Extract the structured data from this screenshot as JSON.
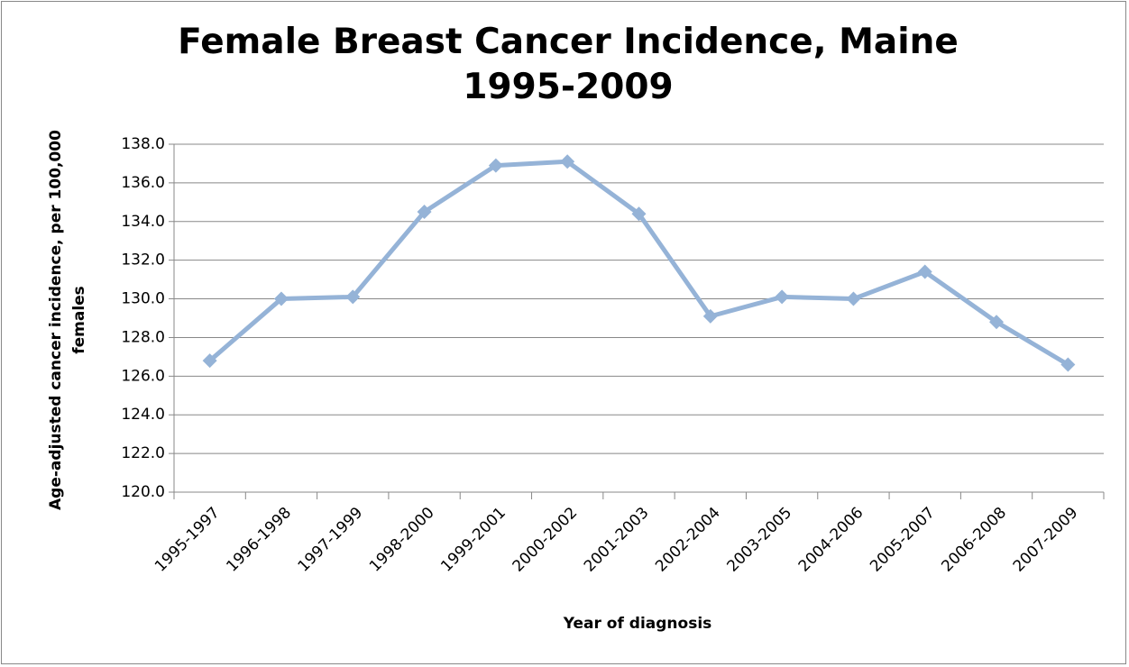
{
  "chart_data": {
    "type": "line",
    "title": "Female Breast Cancer Incidence, Maine 1995-2009",
    "xlabel": "Year of diagnosis",
    "ylabel": "Age-adjusted cancer incidence, per 100,000 females",
    "categories": [
      "1995-1997",
      "1996-1998",
      "1997-1999",
      "1998-2000",
      "1999-2001",
      "2000-2002",
      "2001-2003",
      "2002-2004",
      "2003-2005",
      "2004-2006",
      "2005-2007",
      "2006-2008",
      "2007-2009"
    ],
    "series": [
      {
        "color": "#95b3d7",
        "values": [
          126.8,
          130.0,
          130.1,
          134.5,
          136.9,
          137.1,
          134.4,
          129.1,
          130.1,
          130.0,
          131.4,
          128.8,
          126.6
        ]
      }
    ],
    "ylim": [
      120,
      138
    ],
    "yticks": [
      {
        "value": 120,
        "label": "120.0"
      },
      {
        "value": 122,
        "label": "122.0"
      },
      {
        "value": 124,
        "label": "124.0"
      },
      {
        "value": 126,
        "label": "126.0"
      },
      {
        "value": 128,
        "label": "128.0"
      },
      {
        "value": 130,
        "label": "130.0"
      },
      {
        "value": 132,
        "label": "132.0"
      },
      {
        "value": 134,
        "label": "134.0"
      },
      {
        "value": 136,
        "label": "136.0"
      },
      {
        "value": 138,
        "label": "138.0"
      }
    ],
    "grid": true
  }
}
